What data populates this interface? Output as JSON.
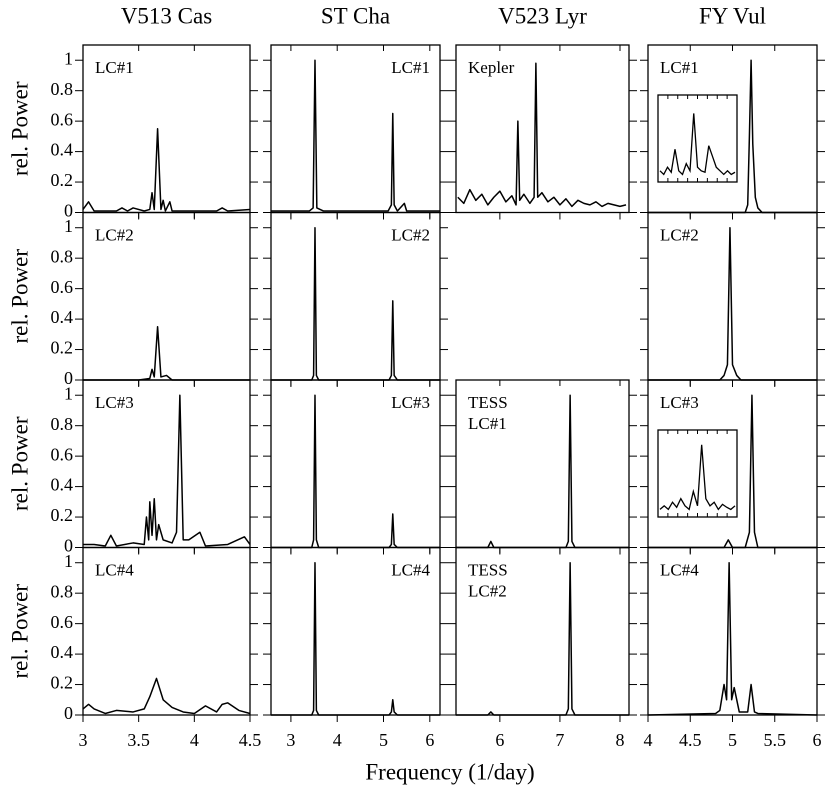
{
  "chart_data": {
    "type": "line",
    "xlabel": "Frequency (1/day)",
    "ylabel": "rel. Power",
    "ylim": [
      0,
      1.1
    ],
    "yticks": [
      0,
      0.2,
      0.4,
      0.6,
      0.8,
      1
    ],
    "color": "#000000",
    "columns": [
      {
        "title": "V513 Cas",
        "xlim": [
          3,
          4.5
        ],
        "xticks": [
          3,
          3.5,
          4,
          4.5
        ],
        "label_corner": "left",
        "panels": [
          {
            "label": [
              "LC#1"
            ],
            "x": [
              3,
              3.05,
              3.1,
              3.3,
              3.35,
              3.4,
              3.45,
              3.55,
              3.6,
              3.62,
              3.64,
              3.67,
              3.7,
              3.72,
              3.74,
              3.78,
              3.8,
              3.85,
              4.2,
              4.25,
              4.3,
              4.5
            ],
            "values": [
              0.02,
              0.07,
              0.01,
              0.01,
              0.03,
              0.01,
              0.03,
              0.01,
              0.02,
              0.13,
              0.02,
              0.55,
              0.02,
              0.08,
              0.01,
              0.07,
              0.01,
              0.01,
              0.01,
              0.03,
              0.01,
              0.02
            ]
          },
          {
            "label": [
              "LC#2"
            ],
            "x": [
              3,
              3.5,
              3.6,
              3.62,
              3.64,
              3.67,
              3.7,
              3.75,
              3.8,
              4.5
            ],
            "values": [
              0,
              0,
              0.01,
              0.07,
              0.02,
              0.35,
              0.02,
              0.03,
              0,
              0
            ]
          },
          {
            "label": [
              "LC#3"
            ],
            "x": [
              3,
              3.1,
              3.2,
              3.25,
              3.3,
              3.45,
              3.55,
              3.57,
              3.59,
              3.6,
              3.62,
              3.64,
              3.66,
              3.68,
              3.72,
              3.8,
              3.84,
              3.87,
              3.9,
              3.95,
              4.05,
              4.1,
              4.3,
              4.45,
              4.5
            ],
            "values": [
              0.02,
              0.02,
              0.01,
              0.08,
              0.01,
              0.03,
              0.02,
              0.2,
              0.05,
              0.3,
              0.08,
              0.32,
              0.05,
              0.15,
              0.05,
              0.03,
              0.1,
              1.0,
              0.05,
              0.05,
              0.1,
              0.01,
              0.02,
              0.07,
              0.02
            ]
          },
          {
            "label": [
              "LC#4"
            ],
            "x": [
              3,
              3.05,
              3.1,
              3.2,
              3.3,
              3.45,
              3.55,
              3.6,
              3.66,
              3.72,
              3.8,
              3.9,
              4.0,
              4.1,
              4.2,
              4.25,
              4.3,
              4.4,
              4.5
            ],
            "values": [
              0.04,
              0.07,
              0.04,
              0.01,
              0.03,
              0.02,
              0.04,
              0.12,
              0.24,
              0.1,
              0.05,
              0.02,
              0.01,
              0.06,
              0.02,
              0.07,
              0.08,
              0.03,
              0.01
            ]
          }
        ]
      },
      {
        "title": "ST Cha",
        "xlim": [
          2.57,
          6.22
        ],
        "xticks": [
          3,
          4,
          5,
          6
        ],
        "label_corner": "right",
        "panels": [
          {
            "label": [
              "LC#1"
            ],
            "x": [
              2.57,
              3.4,
              3.48,
              3.52,
              3.56,
              3.7,
              5.1,
              5.17,
              5.2,
              5.23,
              5.3,
              5.45,
              5.5,
              6.22
            ],
            "values": [
              0.01,
              0.01,
              0.03,
              1,
              0.03,
              0.01,
              0.01,
              0.05,
              0.65,
              0.05,
              0.01,
              0.06,
              0.01,
              0.01
            ]
          },
          {
            "label": [
              "LC#2"
            ],
            "x": [
              2.57,
              3.45,
              3.49,
              3.52,
              3.55,
              3.6,
              5.12,
              5.17,
              5.2,
              5.23,
              5.3,
              6.22
            ],
            "values": [
              0,
              0,
              0.03,
              1,
              0.03,
              0,
              0,
              0.03,
              0.52,
              0.03,
              0,
              0
            ]
          },
          {
            "label": [
              "LC#3"
            ],
            "x": [
              2.57,
              3.45,
              3.49,
              3.52,
              3.55,
              3.6,
              5.12,
              5.17,
              5.2,
              5.23,
              5.3,
              6.22
            ],
            "values": [
              0,
              0,
              0.05,
              1,
              0.05,
              0,
              0,
              0.02,
              0.22,
              0.02,
              0,
              0
            ]
          },
          {
            "label": [
              "LC#4"
            ],
            "x": [
              2.57,
              3.45,
              3.49,
              3.52,
              3.55,
              3.6,
              5.12,
              5.17,
              5.2,
              5.23,
              5.3,
              6.22
            ],
            "values": [
              0,
              0,
              0.03,
              1,
              0.03,
              0,
              0,
              0.02,
              0.1,
              0.02,
              0,
              0
            ]
          }
        ]
      },
      {
        "title": "V523 Lyr",
        "xlim": [
          5.27,
          8.15
        ],
        "xticks": [
          6,
          7,
          8
        ],
        "label_corner": "left",
        "panels": [
          {
            "label": [
              "Kepler"
            ],
            "x": [
              5.3,
              5.4,
              5.5,
              5.6,
              5.7,
              5.8,
              5.9,
              6.0,
              6.1,
              6.2,
              6.27,
              6.3,
              6.33,
              6.4,
              6.5,
              6.57,
              6.6,
              6.63,
              6.7,
              6.8,
              6.9,
              7.0,
              7.1,
              7.2,
              7.3,
              7.4,
              7.5,
              7.6,
              7.7,
              7.8,
              7.9,
              8.0,
              8.1
            ],
            "values": [
              0.1,
              0.06,
              0.15,
              0.08,
              0.12,
              0.05,
              0.1,
              0.14,
              0.07,
              0.11,
              0.05,
              0.6,
              0.08,
              0.12,
              0.06,
              0.1,
              0.98,
              0.1,
              0.13,
              0.07,
              0.1,
              0.05,
              0.09,
              0.04,
              0.08,
              0.06,
              0.05,
              0.07,
              0.04,
              0.06,
              0.05,
              0.04,
              0.05
            ]
          },
          null,
          {
            "label": [
              "TESS",
              "LC#1"
            ],
            "x": [
              5.27,
              5.8,
              5.85,
              5.9,
              7.1,
              7.14,
              7.17,
              7.2,
              7.25,
              8.15
            ],
            "values": [
              0,
              0,
              0.04,
              0,
              0,
              0.04,
              1,
              0.04,
              0,
              0
            ]
          },
          {
            "label": [
              "TESS",
              "LC#2"
            ],
            "x": [
              5.27,
              5.8,
              5.85,
              5.9,
              7.1,
              7.14,
              7.17,
              7.2,
              7.25,
              8.15
            ],
            "values": [
              0,
              0,
              0.02,
              0,
              0,
              0.04,
              1,
              0.04,
              0,
              0
            ]
          }
        ]
      },
      {
        "title": "FY Vul",
        "xlim": [
          4,
          6
        ],
        "xticks": [
          4,
          4.5,
          5,
          5.5,
          6
        ],
        "label_corner": "left",
        "panels": [
          {
            "label": [
              "LC#1"
            ],
            "x": [
              4,
              4.8,
              5.15,
              5.18,
              5.2,
              5.22,
              5.24,
              5.27,
              5.3,
              5.35,
              6
            ],
            "values": [
              0,
              0,
              0,
              0.05,
              0.5,
              1,
              0.45,
              0.1,
              0.03,
              0,
              0
            ],
            "inset": [
              0.1,
              0.05,
              0.15,
              0.08,
              0.4,
              0.1,
              0.05,
              0.2,
              0.1,
              0.9,
              0.15,
              0.1,
              0.08,
              0.45,
              0.3,
              0.15,
              0.1,
              0.05,
              0.1,
              0.05,
              0.08
            ]
          },
          {
            "label": [
              "LC#2"
            ],
            "x": [
              4,
              4.85,
              4.9,
              4.94,
              4.97,
              5.0,
              5.05,
              5.1,
              6
            ],
            "values": [
              0,
              0,
              0.03,
              0.1,
              1,
              0.1,
              0.03,
              0,
              0
            ]
          },
          {
            "label": [
              "LC#3"
            ],
            "x": [
              4,
              4.9,
              4.95,
              5.0,
              5.15,
              5.2,
              5.23,
              5.26,
              5.3,
              6
            ],
            "values": [
              0,
              0,
              0.05,
              0,
              0,
              0.1,
              1,
              0.1,
              0,
              0
            ],
            "inset": [
              0.05,
              0.1,
              0.05,
              0.15,
              0.08,
              0.2,
              0.1,
              0.05,
              0.3,
              0.1,
              0.95,
              0.2,
              0.1,
              0.15,
              0.05,
              0.12,
              0.08,
              0.05,
              0.1
            ]
          },
          {
            "label": [
              "LC#4"
            ],
            "x": [
              4,
              4.8,
              4.85,
              4.9,
              4.93,
              4.96,
              4.99,
              5.02,
              5.08,
              5.18,
              5.22,
              5.26,
              5.3,
              6
            ],
            "values": [
              0,
              0.01,
              0.03,
              0.2,
              0.1,
              1,
              0.1,
              0.18,
              0.02,
              0.02,
              0.2,
              0.02,
              0.01,
              0
            ]
          }
        ]
      }
    ]
  }
}
